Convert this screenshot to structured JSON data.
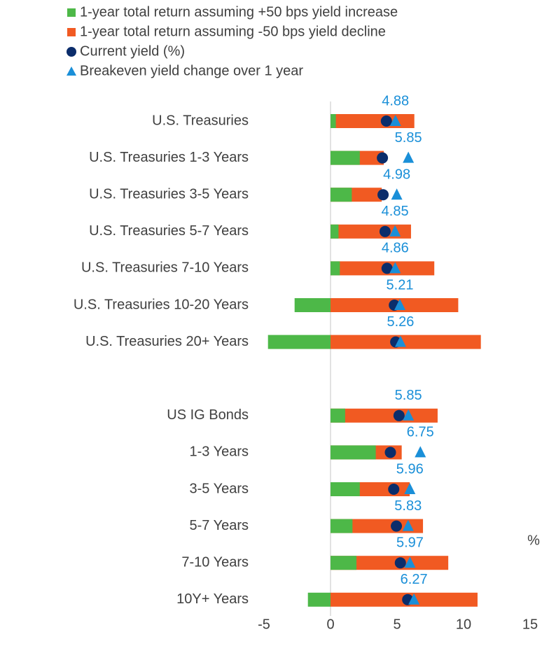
{
  "chart_data": {
    "type": "bar",
    "categories": [
      "U.S. Treasuries",
      "U.S. Treasuries 1-3 Years",
      "U.S. Treasuries 3-5 Years",
      "U.S. Treasuries 5-7 Years",
      "U.S. Treasuries 7-10 Years",
      "U.S. Treasuries 10-20 Years",
      "U.S. Treasuries 20+ Years",
      null,
      "US IG Bonds",
      "1-3 Years",
      "3-5 Years",
      "5-7 Years",
      "7-10 Years",
      "10Y+ Years"
    ],
    "series": [
      {
        "name": "1-year total return assuming +50 bps yield increase",
        "color": "#4db848",
        "marker": "bar",
        "values": [
          0.4,
          2.2,
          1.6,
          0.6,
          0.7,
          -2.7,
          -4.7,
          null,
          1.1,
          3.4,
          2.2,
          1.65,
          1.95,
          -1.7
        ]
      },
      {
        "name": "1-year total return assuming -50 bps yield decline",
        "color": "#f15a22",
        "marker": "bar",
        "values": [
          6.3,
          4.0,
          3.85,
          6.05,
          7.8,
          9.6,
          11.3,
          null,
          8.05,
          5.35,
          5.95,
          6.95,
          8.85,
          11.05
        ]
      },
      {
        "name": "Current yield (%)",
        "color": "#0b2d6b",
        "marker": "circle",
        "values": [
          4.2,
          3.9,
          3.95,
          4.1,
          4.25,
          4.8,
          4.9,
          null,
          5.15,
          4.5,
          4.75,
          4.95,
          5.25,
          5.8
        ]
      },
      {
        "name": "Breakeven yield change over 1 year",
        "color": "#1a8fd8",
        "marker": "triangle",
        "data_labels": true,
        "values": [
          4.88,
          5.85,
          4.98,
          4.85,
          4.86,
          5.21,
          5.26,
          null,
          5.85,
          6.75,
          5.96,
          5.83,
          5.97,
          6.27
        ]
      }
    ],
    "xlabel": "%",
    "xlim": [
      -5,
      15
    ],
    "xticks": [
      -5,
      0,
      5,
      10,
      15
    ],
    "grid": false
  }
}
